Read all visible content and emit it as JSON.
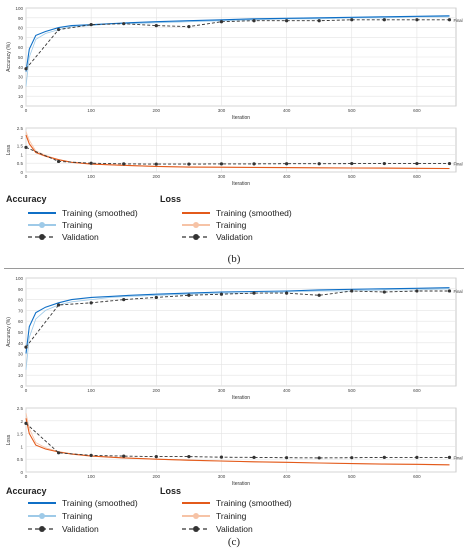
{
  "figures": [
    {
      "caption": "(b)",
      "legend": {
        "accuracy_title": "Accuracy",
        "loss_title": "Loss",
        "acc_items": [
          "Training (smoothed)",
          "Training",
          "Validation"
        ],
        "loss_items": [
          "Training (smoothed)",
          "Training",
          "Validation"
        ]
      }
    },
    {
      "caption": "(c)",
      "legend": {
        "accuracy_title": "Accuracy",
        "loss_title": "Loss",
        "acc_items": [
          "Training (smoothed)",
          "Training",
          "Validation"
        ],
        "loss_items": [
          "Training (smoothed)",
          "Training",
          "Validation"
        ]
      }
    }
  ],
  "colors": {
    "acc_smoothed": "#0f6fc6",
    "acc_training": "#9ecae8",
    "loss_smoothed": "#e35a1b",
    "loss_training": "#f6c3a6",
    "validation": "#333333",
    "grid": "#e3e3e3"
  },
  "chart_data": [
    {
      "type": "line",
      "title": "",
      "xlabel": "Iteration",
      "ylabel": "Accuracy (%)",
      "xlim": [
        0,
        660
      ],
      "ylim": [
        0,
        100
      ],
      "xticks": [
        0,
        100,
        200,
        300,
        400,
        500,
        600
      ],
      "yticks": [
        0,
        10,
        20,
        30,
        40,
        50,
        60,
        70,
        80,
        90,
        100
      ],
      "grid": true,
      "final_label": "Final",
      "series": [
        {
          "name": "Training (smoothed)",
          "x": [
            0,
            5,
            15,
            30,
            50,
            70,
            100,
            130,
            160,
            200,
            250,
            300,
            350,
            400,
            450,
            500,
            550,
            600,
            650
          ],
          "y": [
            35,
            58,
            72,
            76,
            80,
            82,
            83,
            84,
            85,
            86,
            87,
            88,
            89,
            89.5,
            90,
            90.5,
            91,
            91.5,
            92
          ]
        },
        {
          "name": "Training",
          "x": [
            0,
            5,
            15,
            30,
            50,
            70,
            100,
            130,
            160,
            200,
            250,
            300,
            350,
            400,
            450,
            500,
            550,
            600,
            650
          ],
          "y": [
            20,
            50,
            68,
            74,
            78,
            81,
            82,
            84,
            84,
            85,
            86,
            87,
            88,
            89,
            89,
            90,
            90,
            91,
            91
          ]
        },
        {
          "name": "Validation",
          "x": [
            0,
            50,
            100,
            150,
            200,
            250,
            300,
            350,
            400,
            450,
            500,
            550,
            600,
            650
          ],
          "y": [
            38,
            78,
            83,
            84,
            82,
            81,
            86,
            87,
            87,
            87,
            88,
            88,
            88,
            88
          ]
        }
      ]
    },
    {
      "type": "line",
      "title": "",
      "xlabel": "Iteration",
      "ylabel": "Loss",
      "xlim": [
        0,
        660
      ],
      "ylim": [
        0,
        2.5
      ],
      "xticks": [
        0,
        100,
        200,
        300,
        400,
        500,
        600
      ],
      "yticks": [
        0,
        0.5,
        1,
        1.5,
        2,
        2.5
      ],
      "grid": true,
      "final_label": "Final",
      "series": [
        {
          "name": "Training (smoothed)",
          "x": [
            0,
            5,
            15,
            30,
            50,
            70,
            100,
            150,
            200,
            250,
            300,
            350,
            400,
            450,
            500,
            550,
            600,
            650
          ],
          "y": [
            2.1,
            1.6,
            1.1,
            0.9,
            0.7,
            0.55,
            0.45,
            0.38,
            0.32,
            0.28,
            0.27,
            0.26,
            0.25,
            0.24,
            0.23,
            0.22,
            0.21,
            0.2
          ]
        },
        {
          "name": "Training",
          "x": [
            0,
            5,
            15,
            30,
            50,
            70,
            100,
            150,
            200,
            250,
            300,
            350,
            400,
            450,
            500,
            550,
            600,
            650
          ],
          "y": [
            2.3,
            1.8,
            1.2,
            0.95,
            0.7,
            0.55,
            0.45,
            0.37,
            0.31,
            0.27,
            0.26,
            0.25,
            0.24,
            0.23,
            0.22,
            0.21,
            0.2,
            0.19
          ]
        },
        {
          "name": "Validation",
          "x": [
            0,
            50,
            100,
            150,
            200,
            250,
            300,
            350,
            400,
            450,
            500,
            550,
            600,
            650
          ],
          "y": [
            1.4,
            0.6,
            0.5,
            0.46,
            0.45,
            0.45,
            0.46,
            0.46,
            0.47,
            0.47,
            0.48,
            0.48,
            0.48,
            0.48
          ]
        }
      ]
    },
    {
      "type": "line",
      "title": "",
      "xlabel": "Iteration",
      "ylabel": "Accuracy (%)",
      "xlim": [
        0,
        660
      ],
      "ylim": [
        0,
        100
      ],
      "xticks": [
        0,
        100,
        200,
        300,
        400,
        500,
        600
      ],
      "yticks": [
        0,
        10,
        20,
        30,
        40,
        50,
        60,
        70,
        80,
        90,
        100
      ],
      "grid": true,
      "final_label": "Final",
      "series": [
        {
          "name": "Training (smoothed)",
          "x": [
            0,
            5,
            15,
            30,
            50,
            70,
            100,
            130,
            160,
            200,
            250,
            300,
            350,
            400,
            450,
            500,
            550,
            600,
            650
          ],
          "y": [
            30,
            55,
            68,
            73,
            77,
            80,
            82,
            83,
            84,
            85,
            86,
            87,
            87.5,
            88,
            89,
            89.5,
            90,
            90.5,
            91
          ]
        },
        {
          "name": "Training",
          "x": [
            0,
            5,
            15,
            30,
            50,
            70,
            100,
            130,
            160,
            200,
            250,
            300,
            350,
            400,
            450,
            500,
            550,
            600,
            650
          ],
          "y": [
            15,
            45,
            62,
            70,
            75,
            78,
            80,
            82,
            83,
            84,
            85,
            86,
            86,
            87,
            88,
            88,
            89,
            89,
            90
          ]
        },
        {
          "name": "Validation",
          "x": [
            0,
            50,
            100,
            150,
            200,
            250,
            300,
            350,
            400,
            450,
            500,
            550,
            600,
            650
          ],
          "y": [
            36,
            75,
            77,
            80,
            82,
            84,
            85,
            86,
            86,
            84,
            88,
            87,
            88,
            88
          ]
        }
      ]
    },
    {
      "type": "line",
      "title": "",
      "xlabel": "Iteration",
      "ylabel": "Loss",
      "xlim": [
        0,
        660
      ],
      "ylim": [
        0,
        2.5
      ],
      "xticks": [
        0,
        100,
        200,
        300,
        400,
        500,
        600
      ],
      "yticks": [
        0,
        0.5,
        1,
        1.5,
        2,
        2.5
      ],
      "grid": true,
      "final_label": "Final",
      "series": [
        {
          "name": "Training (smoothed)",
          "x": [
            0,
            5,
            15,
            30,
            50,
            70,
            100,
            150,
            200,
            250,
            300,
            350,
            400,
            450,
            500,
            550,
            600,
            650
          ],
          "y": [
            2.1,
            1.5,
            1.05,
            0.9,
            0.78,
            0.7,
            0.62,
            0.55,
            0.5,
            0.46,
            0.43,
            0.4,
            0.38,
            0.35,
            0.33,
            0.31,
            0.3,
            0.28
          ]
        },
        {
          "name": "Training",
          "x": [
            0,
            5,
            15,
            30,
            50,
            70,
            100,
            150,
            200,
            250,
            300,
            350,
            400,
            450,
            500,
            550,
            600,
            650
          ],
          "y": [
            2.3,
            1.7,
            1.15,
            0.95,
            0.8,
            0.72,
            0.63,
            0.55,
            0.5,
            0.45,
            0.42,
            0.4,
            0.37,
            0.35,
            0.33,
            0.31,
            0.29,
            0.27
          ]
        },
        {
          "name": "Validation",
          "x": [
            0,
            50,
            100,
            150,
            200,
            250,
            300,
            350,
            400,
            450,
            500,
            550,
            600,
            650
          ],
          "y": [
            1.9,
            0.75,
            0.65,
            0.62,
            0.6,
            0.6,
            0.58,
            0.57,
            0.56,
            0.55,
            0.56,
            0.57,
            0.57,
            0.57
          ]
        }
      ]
    }
  ]
}
